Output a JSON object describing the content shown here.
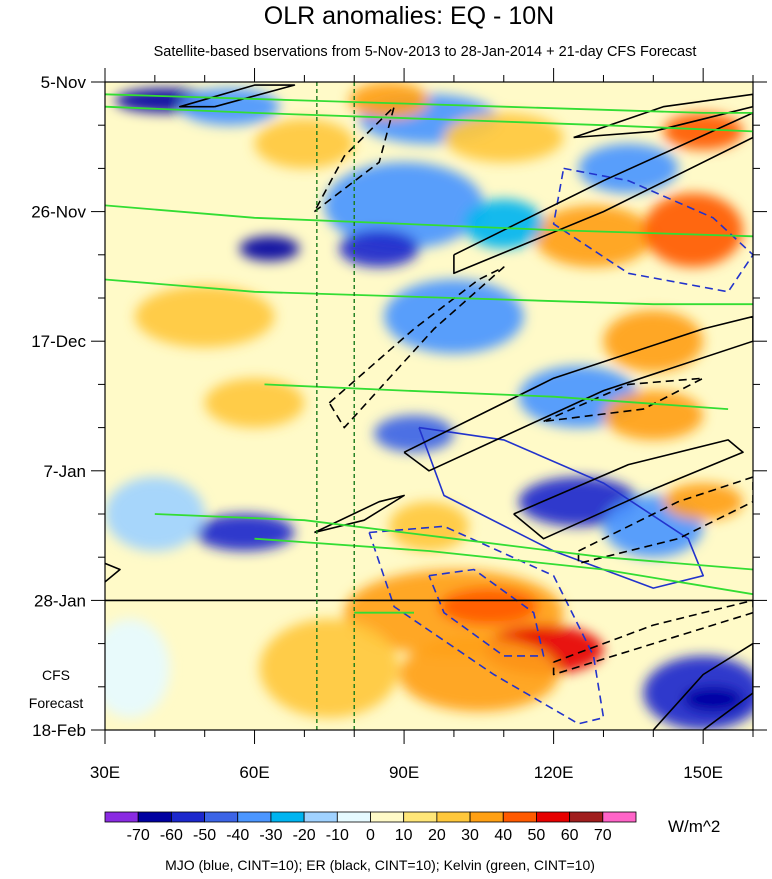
{
  "chart_data": {
    "type": "heatmap",
    "title": "OLR anomalies: EQ - 10N",
    "subtitle": "Satellite-based bservations from 5-Nov-2013 to 28-Jan-2014 + 21-day CFS Forecast",
    "xlabel": "",
    "ylabel": "",
    "x_range": [
      30,
      160
    ],
    "y_range_days": [
      0,
      105
    ],
    "x_ticks": [
      {
        "value": 30,
        "label": "30E"
      },
      {
        "value": 60,
        "label": "60E"
      },
      {
        "value": 90,
        "label": "90E"
      },
      {
        "value": 120,
        "label": "120E"
      },
      {
        "value": 150,
        "label": "150E"
      }
    ],
    "y_ticks": [
      {
        "day": 0,
        "label": "5-Nov"
      },
      {
        "day": 21,
        "label": "26-Nov"
      },
      {
        "day": 42,
        "label": "17-Dec"
      },
      {
        "day": 63,
        "label": "7-Jan"
      },
      {
        "day": 84,
        "label": "28-Jan"
      },
      {
        "day": 105,
        "label": "18-Feb"
      }
    ],
    "forecast_start_day": 84,
    "forecast_label_1": "CFS",
    "forecast_label_2": "Forecast",
    "reference_lon_lines": [
      72.5,
      80
    ],
    "colorbar": {
      "unit": "W/m^2",
      "levels": [
        "-70",
        "-60",
        "-50",
        "-40",
        "-30",
        "-20",
        "-10",
        "0",
        "10",
        "20",
        "30",
        "40",
        "50",
        "60",
        "70"
      ],
      "colors": [
        "#8a2be2",
        "#0000a0",
        "#1c28cc",
        "#3c64e6",
        "#4b96ff",
        "#00b4f0",
        "#a0d2ff",
        "#e6faff",
        "#fffac8",
        "#ffe678",
        "#ffc83c",
        "#ffa014",
        "#ff5a00",
        "#e60000",
        "#a01e1e",
        "#ff64c8"
      ]
    },
    "anomaly_regions": [
      {
        "lon": 42,
        "day": 3,
        "rx": 10,
        "ry": 2.0,
        "value": -65
      },
      {
        "lon": 55,
        "day": 4,
        "rx": 10,
        "ry": 3.0,
        "value": -40
      },
      {
        "lon": 95,
        "day": 6,
        "rx": 14,
        "ry": 4.0,
        "value": -35
      },
      {
        "lon": 110,
        "day": 9,
        "rx": 12,
        "ry": 4.0,
        "value": 25
      },
      {
        "lon": 87,
        "day": 3,
        "rx": 8,
        "ry": 3.0,
        "value": 30
      },
      {
        "lon": 70,
        "day": 10,
        "rx": 10,
        "ry": 4.0,
        "value": 20
      },
      {
        "lon": 150,
        "day": 8,
        "rx": 8,
        "ry": 3.0,
        "value": 45
      },
      {
        "lon": 135,
        "day": 14,
        "rx": 10,
        "ry": 4.0,
        "value": -35
      },
      {
        "lon": 90,
        "day": 20,
        "rx": 16,
        "ry": 7.0,
        "value": -40
      },
      {
        "lon": 85,
        "day": 27,
        "rx": 8,
        "ry": 3.0,
        "value": -60
      },
      {
        "lon": 63,
        "day": 27,
        "rx": 6,
        "ry": 2.0,
        "value": -65
      },
      {
        "lon": 128,
        "day": 25,
        "rx": 12,
        "ry": 5.0,
        "value": 30
      },
      {
        "lon": 148,
        "day": 24,
        "rx": 10,
        "ry": 6.0,
        "value": 40
      },
      {
        "lon": 110,
        "day": 23,
        "rx": 8,
        "ry": 4.0,
        "value": -30
      },
      {
        "lon": 50,
        "day": 38,
        "rx": 14,
        "ry": 5.0,
        "value": 20
      },
      {
        "lon": 100,
        "day": 38,
        "rx": 14,
        "ry": 6.0,
        "value": -35
      },
      {
        "lon": 140,
        "day": 42,
        "rx": 10,
        "ry": 5.0,
        "value": 30
      },
      {
        "lon": 125,
        "day": 51,
        "rx": 12,
        "ry": 5.0,
        "value": -40
      },
      {
        "lon": 140,
        "day": 54,
        "rx": 10,
        "ry": 4.0,
        "value": 30
      },
      {
        "lon": 60,
        "day": 52,
        "rx": 10,
        "ry": 4.0,
        "value": 20
      },
      {
        "lon": 92,
        "day": 57,
        "rx": 8,
        "ry": 3.0,
        "value": -50
      },
      {
        "lon": 125,
        "day": 68,
        "rx": 12,
        "ry": 4.0,
        "value": -55
      },
      {
        "lon": 140,
        "day": 72,
        "rx": 10,
        "ry": 5.0,
        "value": -40
      },
      {
        "lon": 150,
        "day": 68,
        "rx": 8,
        "ry": 3.0,
        "value": 35
      },
      {
        "lon": 58,
        "day": 73,
        "rx": 10,
        "ry": 3.0,
        "value": -55
      },
      {
        "lon": 95,
        "day": 72,
        "rx": 8,
        "ry": 4.0,
        "value": 25
      },
      {
        "lon": 40,
        "day": 70,
        "rx": 10,
        "ry": 6.0,
        "value": -15
      },
      {
        "lon": 100,
        "day": 86,
        "rx": 22,
        "ry": 7.0,
        "value": 30
      },
      {
        "lon": 107,
        "day": 85,
        "rx": 10,
        "ry": 3.0,
        "value": 45
      },
      {
        "lon": 118,
        "day": 92,
        "rx": 12,
        "ry": 4.0,
        "value": 50
      },
      {
        "lon": 75,
        "day": 95,
        "rx": 14,
        "ry": 8.0,
        "value": 25
      },
      {
        "lon": 105,
        "day": 96,
        "rx": 16,
        "ry": 6.0,
        "value": 35
      },
      {
        "lon": 150,
        "day": 99,
        "rx": 12,
        "ry": 6.0,
        "value": -55
      },
      {
        "lon": 152,
        "day": 100,
        "rx": 6,
        "ry": 2.0,
        "value": -65
      },
      {
        "lon": 35,
        "day": 95,
        "rx": 8,
        "ry": 8.0,
        "value": -10
      }
    ],
    "contours": [
      {
        "wave": "MJO",
        "color": "#2233cc",
        "style": "dashed",
        "points": [
          [
            122,
            14
          ],
          [
            135,
            16
          ],
          [
            152,
            22
          ],
          [
            160,
            28
          ],
          [
            155,
            34
          ],
          [
            135,
            31
          ],
          [
            120,
            23
          ],
          [
            122,
            14
          ]
        ]
      },
      {
        "wave": "MJO",
        "color": "#2233cc",
        "style": "solid",
        "points": [
          [
            93,
            56
          ],
          [
            110,
            58
          ],
          [
            130,
            65
          ],
          [
            147,
            74
          ],
          [
            150,
            80
          ],
          [
            140,
            82
          ],
          [
            120,
            76
          ],
          [
            98,
            67
          ],
          [
            93,
            56
          ]
        ]
      },
      {
        "wave": "MJO",
        "color": "#2233cc",
        "style": "dashed",
        "points": [
          [
            83,
            73
          ],
          [
            98,
            72
          ],
          [
            120,
            80
          ],
          [
            128,
            93
          ],
          [
            130,
            103
          ],
          [
            125,
            104
          ],
          [
            108,
            96
          ],
          [
            88,
            85
          ],
          [
            83,
            73
          ]
        ]
      },
      {
        "wave": "MJO",
        "color": "#2233cc",
        "style": "dashed",
        "points": [
          [
            95,
            80
          ],
          [
            104,
            79
          ],
          [
            116,
            86
          ],
          [
            118,
            93
          ],
          [
            110,
            93
          ],
          [
            98,
            86
          ],
          [
            95,
            80
          ]
        ]
      },
      {
        "wave": "ER",
        "color": "#000000",
        "style": "solid",
        "points": [
          [
            52,
            4
          ],
          [
            68,
            0.5
          ],
          [
            60,
            0.5
          ],
          [
            45,
            4
          ],
          [
            52,
            4
          ]
        ]
      },
      {
        "wave": "ER",
        "color": "#000000",
        "style": "solid",
        "points": [
          [
            100,
            28
          ],
          [
            130,
            16
          ],
          [
            160,
            5
          ],
          [
            160,
            9
          ],
          [
            130,
            21
          ],
          [
            100,
            31
          ],
          [
            100,
            28
          ]
        ]
      },
      {
        "wave": "ER",
        "color": "#000000",
        "style": "dashed",
        "points": [
          [
            72,
            21
          ],
          [
            85,
            13
          ],
          [
            88,
            4
          ],
          [
            78,
            12
          ],
          [
            72,
            21
          ]
        ]
      },
      {
        "wave": "ER",
        "color": "#000000",
        "style": "dashed",
        "points": [
          [
            75,
            52
          ],
          [
            92,
            40
          ],
          [
            105,
            32
          ],
          [
            110,
            30
          ],
          [
            96,
            40
          ],
          [
            78,
            56
          ],
          [
            75,
            52
          ]
        ]
      },
      {
        "wave": "ER",
        "color": "#000000",
        "style": "solid",
        "points": [
          [
            90,
            60
          ],
          [
            120,
            48
          ],
          [
            150,
            40
          ],
          [
            160,
            38
          ],
          [
            160,
            42
          ],
          [
            130,
            50
          ],
          [
            95,
            63
          ],
          [
            90,
            60
          ]
        ]
      },
      {
        "wave": "ER",
        "color": "#000000",
        "style": "dashed",
        "points": [
          [
            118,
            55
          ],
          [
            135,
            49
          ],
          [
            150,
            48
          ],
          [
            138,
            53
          ],
          [
            118,
            55
          ]
        ]
      },
      {
        "wave": "ER",
        "color": "#000000",
        "style": "solid",
        "points": [
          [
            112,
            70
          ],
          [
            135,
            62
          ],
          [
            155,
            58
          ],
          [
            158,
            60
          ],
          [
            140,
            66
          ],
          [
            118,
            74
          ],
          [
            112,
            70
          ]
        ]
      },
      {
        "wave": "ER",
        "color": "#000000",
        "style": "dashed",
        "points": [
          [
            125,
            76
          ],
          [
            145,
            68
          ],
          [
            160,
            64
          ],
          [
            160,
            68
          ],
          [
            145,
            74
          ],
          [
            125,
            78
          ],
          [
            125,
            76
          ]
        ]
      },
      {
        "wave": "ER",
        "color": "#000000",
        "style": "solid",
        "points": [
          [
            72,
            73
          ],
          [
            85,
            68
          ],
          [
            90,
            67
          ],
          [
            82,
            71
          ],
          [
            72,
            73
          ]
        ]
      },
      {
        "wave": "ER",
        "color": "#000000",
        "style": "solid",
        "points": [
          [
            30,
            81
          ],
          [
            33,
            79
          ],
          [
            30,
            78
          ]
        ]
      },
      {
        "wave": "ER",
        "color": "#000000",
        "style": "dashed",
        "points": [
          [
            120,
            94
          ],
          [
            140,
            88
          ],
          [
            160,
            84
          ],
          [
            160,
            86
          ],
          [
            140,
            91
          ],
          [
            120,
            96
          ],
          [
            120,
            94
          ]
        ]
      },
      {
        "wave": "ER",
        "color": "#000000",
        "style": "solid",
        "points": [
          [
            140,
            105
          ],
          [
            150,
            96
          ],
          [
            160,
            91
          ],
          [
            160,
            99
          ],
          [
            150,
            105
          ]
        ]
      },
      {
        "wave": "ER",
        "color": "#000000",
        "style": "solid",
        "points": [
          [
            124,
            9
          ],
          [
            142,
            4
          ],
          [
            160,
            2
          ],
          [
            160,
            4
          ],
          [
            140,
            8
          ],
          [
            124,
            9
          ]
        ]
      },
      {
        "wave": "Kelvin",
        "color": "#33dd33",
        "style": "solid",
        "points": [
          [
            30,
            2
          ],
          [
            70,
            3
          ],
          [
            110,
            4
          ],
          [
            150,
            5
          ],
          [
            160,
            5
          ]
        ]
      },
      {
        "wave": "Kelvin",
        "color": "#33dd33",
        "style": "solid",
        "points": [
          [
            30,
            4
          ],
          [
            60,
            5
          ],
          [
            95,
            6
          ],
          [
            130,
            7
          ],
          [
            160,
            8
          ]
        ]
      },
      {
        "wave": "Kelvin",
        "color": "#33dd33",
        "style": "solid",
        "points": [
          [
            30,
            20
          ],
          [
            60,
            22
          ],
          [
            90,
            23
          ],
          [
            120,
            24
          ],
          [
            160,
            25
          ]
        ]
      },
      {
        "wave": "Kelvin",
        "color": "#33dd33",
        "style": "solid",
        "points": [
          [
            30,
            32
          ],
          [
            60,
            34
          ],
          [
            100,
            35
          ],
          [
            140,
            36
          ],
          [
            160,
            36
          ]
        ]
      },
      {
        "wave": "Kelvin",
        "color": "#33dd33",
        "style": "solid",
        "points": [
          [
            62,
            49
          ],
          [
            90,
            50
          ],
          [
            120,
            51
          ],
          [
            155,
            53
          ]
        ]
      },
      {
        "wave": "Kelvin",
        "color": "#33dd33",
        "style": "solid",
        "points": [
          [
            40,
            70
          ],
          [
            70,
            71
          ],
          [
            100,
            74
          ],
          [
            130,
            77
          ],
          [
            160,
            79
          ]
        ]
      },
      {
        "wave": "Kelvin",
        "color": "#33dd33",
        "style": "solid",
        "points": [
          [
            60,
            74
          ],
          [
            95,
            76
          ],
          [
            130,
            79
          ],
          [
            160,
            83
          ]
        ]
      },
      {
        "wave": "Kelvin",
        "color": "#33dd33",
        "style": "solid",
        "points": [
          [
            80,
            86
          ],
          [
            92,
            86
          ]
        ]
      }
    ]
  },
  "footer": "MJO (blue, CINT=10); ER (black, CINT=10); Kelvin (green, CINT=10)"
}
